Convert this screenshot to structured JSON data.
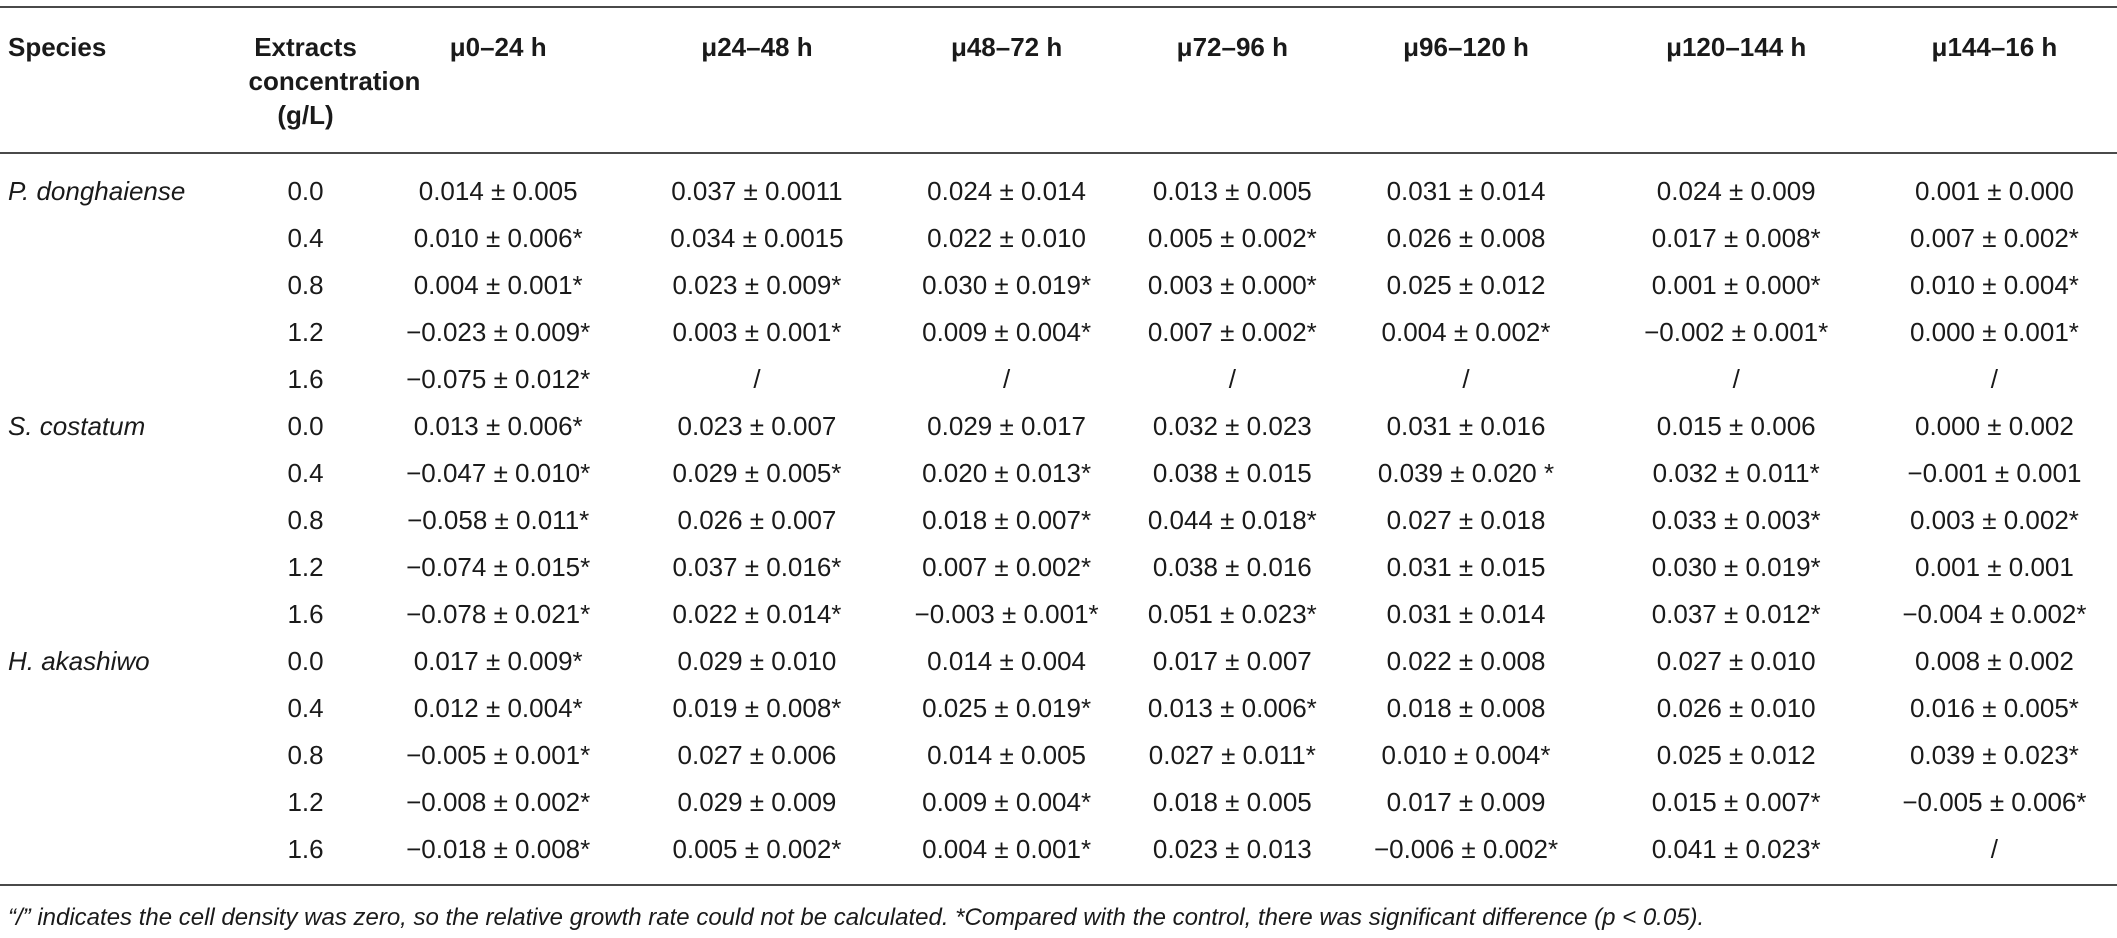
{
  "table": {
    "columns": [
      "Species",
      "Extracts concentration (g/L)",
      "μ0–24 h",
      "μ24–48 h",
      "μ48–72 h",
      "μ72–96 h",
      "μ96–120 h",
      "μ120–144 h",
      "μ144–16 h"
    ],
    "rows": [
      [
        "P. donghaiense",
        "0.0",
        "0.014 ± 0.005",
        "0.037 ± 0.0011",
        "0.024 ± 0.014",
        "0.013 ± 0.005",
        "0.031 ± 0.014",
        "0.024 ± 0.009",
        "0.001 ± 0.000"
      ],
      [
        "",
        "0.4",
        "0.010 ± 0.006*",
        "0.034 ± 0.0015",
        "0.022 ± 0.010",
        "0.005 ± 0.002*",
        "0.026 ± 0.008",
        "0.017 ± 0.008*",
        "0.007 ± 0.002*"
      ],
      [
        "",
        "0.8",
        "0.004 ± 0.001*",
        "0.023 ± 0.009*",
        "0.030 ± 0.019*",
        "0.003 ± 0.000*",
        "0.025 ± 0.012",
        "0.001 ± 0.000*",
        "0.010 ± 0.004*"
      ],
      [
        "",
        "1.2",
        "−0.023 ± 0.009*",
        "0.003 ± 0.001*",
        "0.009 ± 0.004*",
        "0.007 ± 0.002*",
        "0.004 ± 0.002*",
        "−0.002 ± 0.001*",
        "0.000 ± 0.001*"
      ],
      [
        "",
        "1.6",
        "−0.075 ± 0.012*",
        "/",
        "/",
        "/",
        "/",
        "/",
        "/"
      ],
      [
        "S. costatum",
        "0.0",
        "0.013 ± 0.006*",
        "0.023 ± 0.007",
        "0.029 ± 0.017",
        "0.032 ± 0.023",
        "0.031 ± 0.016",
        "0.015 ± 0.006",
        "0.000 ± 0.002"
      ],
      [
        "",
        "0.4",
        "−0.047 ± 0.010*",
        "0.029 ± 0.005*",
        "0.020 ± 0.013*",
        "0.038 ± 0.015",
        "0.039 ± 0.020 *",
        "0.032 ± 0.011*",
        "−0.001 ± 0.001"
      ],
      [
        "",
        "0.8",
        "−0.058 ± 0.011*",
        "0.026 ± 0.007",
        "0.018 ± 0.007*",
        "0.044 ± 0.018*",
        "0.027 ± 0.018",
        "0.033 ± 0.003*",
        "0.003 ± 0.002*"
      ],
      [
        "",
        "1.2",
        "−0.074 ± 0.015*",
        "0.037 ± 0.016*",
        "0.007 ± 0.002*",
        "0.038 ± 0.016",
        "0.031 ± 0.015",
        "0.030 ± 0.019*",
        "0.001 ± 0.001"
      ],
      [
        "",
        "1.6",
        "−0.078 ± 0.021*",
        "0.022 ± 0.014*",
        "−0.003 ± 0.001*",
        "0.051 ± 0.023*",
        "0.031 ± 0.014",
        "0.037 ± 0.012*",
        "−0.004 ± 0.002*"
      ],
      [
        "H. akashiwo",
        "0.0",
        "0.017 ± 0.009*",
        "0.029 ± 0.010",
        "0.014 ± 0.004",
        "0.017 ± 0.007",
        "0.022 ± 0.008",
        "0.027 ± 0.010",
        "0.008 ± 0.002"
      ],
      [
        "",
        "0.4",
        "0.012 ± 0.004*",
        "0.019 ± 0.008*",
        "0.025 ± 0.019*",
        "0.013 ± 0.006*",
        "0.018 ± 0.008",
        "0.026 ± 0.010",
        "0.016 ± 0.005*"
      ],
      [
        "",
        "0.8",
        "−0.005 ± 0.001*",
        "0.027 ± 0.006",
        "0.014 ± 0.005",
        "0.027 ± 0.011*",
        "0.010 ± 0.004*",
        "0.025 ± 0.012",
        "0.039 ± 0.023*"
      ],
      [
        "",
        "1.2",
        "−0.008 ± 0.002*",
        "0.029 ± 0.009",
        "0.009 ± 0.004*",
        "0.018 ± 0.005",
        "0.017 ± 0.009",
        "0.015 ± 0.007*",
        "−0.005 ± 0.006*"
      ],
      [
        "",
        "1.6",
        "−0.018 ± 0.008*",
        "0.005 ± 0.002*",
        "0.004 ± 0.001*",
        "0.023 ± 0.013",
        "−0.006 ± 0.002*",
        "0.041 ± 0.023*",
        "/"
      ]
    ],
    "footnote": "“/” indicates the cell density was zero, so the relative growth rate could not be calculated. *Compared with the control, there was significant difference (p < 0.05)."
  }
}
